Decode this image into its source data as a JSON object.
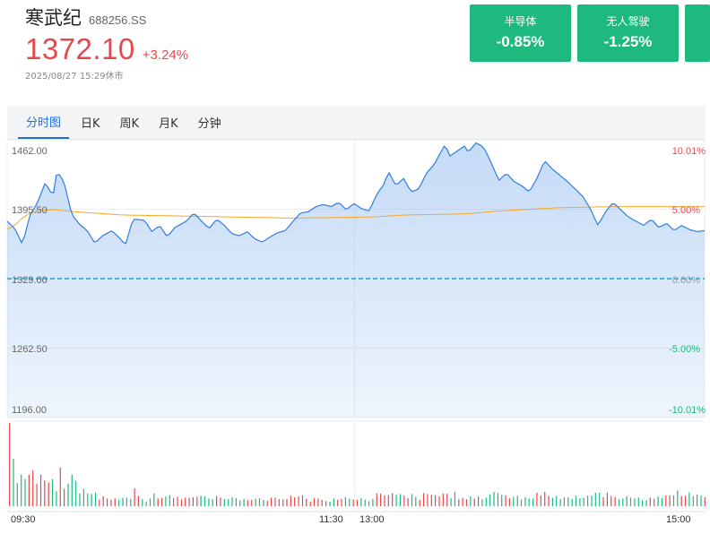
{
  "stock": {
    "name": "寒武纪",
    "code": "688256.SS",
    "price": "1372.10",
    "change_pct": "+3.24%",
    "timestamp": "2025/08/27 15:29休市"
  },
  "sectors": [
    {
      "name": "半导体",
      "change": "-0.85%"
    },
    {
      "name": "无人驾驶",
      "change": "-1.25%"
    }
  ],
  "tabs": [
    {
      "label": "分时图",
      "active": true
    },
    {
      "label": "日K",
      "active": false
    },
    {
      "label": "周K",
      "active": false
    },
    {
      "label": "月K",
      "active": false
    },
    {
      "label": "分钟",
      "active": false
    }
  ],
  "colors": {
    "up": "#e5484d",
    "down": "#1db97f",
    "price_line": "#2f7de1",
    "avg_line": "#f5a623",
    "accent": "#1e6fd9"
  },
  "chart_data": {
    "type": "line",
    "prev_close": 1329.0,
    "y_ticks": [
      "1462.00",
      "1395.50",
      "1329.00",
      "1262.50",
      "1196.00"
    ],
    "pct_ticks": [
      "10.01%",
      "5.00%",
      "0.00%",
      "-5.00%",
      "-10.01%"
    ],
    "x_ticks": [
      "09:30",
      "11:30",
      "13:00",
      "15:00"
    ],
    "ylim": [
      1196.0,
      1462.0
    ],
    "price_keypoints": [
      [
        0,
        1384
      ],
      [
        4,
        1377
      ],
      [
        8,
        1362
      ],
      [
        12,
        1390
      ],
      [
        16,
        1402
      ],
      [
        20,
        1421
      ],
      [
        24,
        1408
      ],
      [
        26,
        1430
      ],
      [
        28,
        1428
      ],
      [
        30,
        1420
      ],
      [
        34,
        1390
      ],
      [
        38,
        1381
      ],
      [
        42,
        1375
      ],
      [
        46,
        1363
      ],
      [
        50,
        1370
      ],
      [
        55,
        1375
      ],
      [
        60,
        1366
      ],
      [
        62,
        1361
      ],
      [
        66,
        1386
      ],
      [
        72,
        1385
      ],
      [
        76,
        1374
      ],
      [
        80,
        1380
      ],
      [
        84,
        1369
      ],
      [
        88,
        1378
      ],
      [
        94,
        1384
      ],
      [
        98,
        1392
      ],
      [
        102,
        1384
      ],
      [
        106,
        1377
      ],
      [
        110,
        1386
      ],
      [
        114,
        1380
      ],
      [
        118,
        1372
      ],
      [
        122,
        1370
      ],
      [
        126,
        1374
      ],
      [
        130,
        1367
      ],
      [
        134,
        1364
      ],
      [
        138,
        1369
      ],
      [
        142,
        1373
      ],
      [
        146,
        1375
      ],
      [
        150,
        1384
      ],
      [
        154,
        1392
      ],
      [
        158,
        1393
      ],
      [
        162,
        1398
      ],
      [
        166,
        1400
      ],
      [
        170,
        1398
      ],
      [
        174,
        1402
      ],
      [
        178,
        1395
      ],
      [
        182,
        1401
      ],
      [
        186,
        1396
      ],
      [
        190,
        1394
      ],
      [
        194,
        1410
      ],
      [
        198,
        1420
      ],
      [
        200,
        1432
      ],
      [
        204,
        1418
      ],
      [
        208,
        1425
      ],
      [
        212,
        1412
      ],
      [
        216,
        1415
      ],
      [
        220,
        1430
      ],
      [
        224,
        1438
      ],
      [
        226,
        1445
      ],
      [
        230,
        1458
      ],
      [
        232,
        1446
      ],
      [
        236,
        1451
      ],
      [
        240,
        1456
      ],
      [
        242,
        1450
      ],
      [
        246,
        1459
      ],
      [
        250,
        1455
      ],
      [
        254,
        1440
      ],
      [
        258,
        1423
      ],
      [
        262,
        1430
      ],
      [
        266,
        1422
      ],
      [
        270,
        1418
      ],
      [
        274,
        1412
      ],
      [
        278,
        1425
      ],
      [
        282,
        1442
      ],
      [
        286,
        1434
      ],
      [
        290,
        1428
      ],
      [
        294,
        1422
      ],
      [
        298,
        1415
      ],
      [
        302,
        1408
      ],
      [
        306,
        1396
      ],
      [
        310,
        1380
      ],
      [
        314,
        1393
      ],
      [
        318,
        1402
      ],
      [
        322,
        1395
      ],
      [
        326,
        1388
      ],
      [
        330,
        1384
      ],
      [
        334,
        1380
      ],
      [
        338,
        1386
      ],
      [
        342,
        1378
      ],
      [
        346,
        1382
      ],
      [
        350,
        1375
      ],
      [
        354,
        1380
      ],
      [
        358,
        1376
      ],
      [
        362,
        1374
      ],
      [
        366,
        1375
      ]
    ],
    "avg_keypoints": [
      [
        0,
        1376
      ],
      [
        4,
        1380
      ],
      [
        8,
        1387
      ],
      [
        12,
        1392
      ],
      [
        16,
        1394
      ],
      [
        24,
        1395
      ],
      [
        36,
        1393
      ],
      [
        60,
        1390
      ],
      [
        90,
        1389
      ],
      [
        120,
        1388
      ],
      [
        150,
        1387
      ],
      [
        190,
        1388
      ],
      [
        210,
        1390
      ],
      [
        240,
        1391
      ],
      [
        260,
        1394
      ],
      [
        290,
        1397
      ],
      [
        320,
        1398
      ],
      [
        366,
        1398
      ]
    ]
  }
}
